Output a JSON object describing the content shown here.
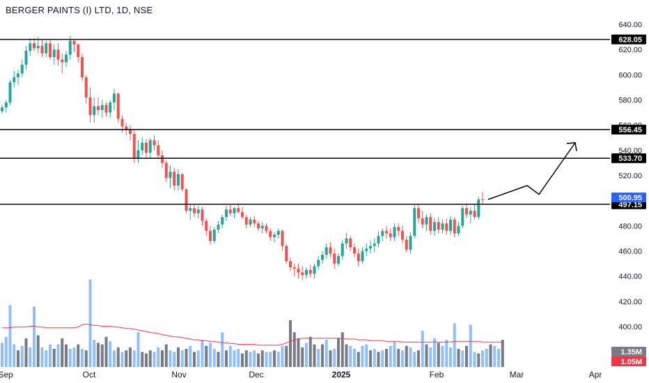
{
  "header": {
    "title": "BERGER PAINTS (I) LTD, 1D, NSE"
  },
  "colors": {
    "up": "#26a69a",
    "down": "#ef5350",
    "vol_up": "#90bff9",
    "vol_down": "#787b86",
    "vol_ma": "#f23645",
    "line": "#000000",
    "axis_text": "#131722",
    "last_price_bg": "#2962ff"
  },
  "chart_data": {
    "type": "candlestick",
    "ylim": [
      380,
      650
    ],
    "y_ticks": [
      "640.00",
      "620.00",
      "600.00",
      "580.00",
      "560.00",
      "540.00",
      "520.00",
      "500.00",
      "480.00",
      "460.00",
      "440.00",
      "420.00",
      "400.00"
    ],
    "x_labels": [
      "Sep",
      "Oct",
      "Nov",
      "Dec",
      "2025",
      "Feb",
      "Mar",
      "Apr"
    ],
    "horizontal_levels": [
      {
        "label": "628.05",
        "value": 628.05
      },
      {
        "label": "556.45",
        "value": 556.45
      },
      {
        "label": "533.70",
        "value": 533.7
      },
      {
        "label": "497.15",
        "value": 497.15
      }
    ],
    "last_price": {
      "label": "500.95",
      "value": 500.95
    },
    "volume_labels": [
      {
        "label": "1.35M",
        "value": 1.35
      },
      {
        "label": "1.05M",
        "value": 1.05
      }
    ],
    "projection_path": [
      [
        500.95,
        0
      ],
      [
        512,
        1
      ],
      [
        505,
        2
      ],
      [
        546,
        4
      ]
    ],
    "candles": [
      [
        571,
        576,
        569,
        574
      ],
      [
        574,
        580,
        570,
        578
      ],
      [
        578,
        596,
        576,
        594
      ],
      [
        594,
        603,
        590,
        598
      ],
      [
        598,
        604,
        592,
        601
      ],
      [
        601,
        612,
        598,
        608
      ],
      [
        608,
        623,
        604,
        619
      ],
      [
        619,
        629,
        615,
        625
      ],
      [
        625,
        629,
        619,
        621
      ],
      [
        621,
        630,
        617,
        623
      ],
      [
        623,
        628,
        614,
        617
      ],
      [
        617,
        627,
        614,
        625
      ],
      [
        625,
        628,
        612,
        614
      ],
      [
        614,
        624,
        608,
        620
      ],
      [
        620,
        625,
        607,
        612
      ],
      [
        612,
        617,
        601,
        610
      ],
      [
        610,
        619,
        606,
        616
      ],
      [
        616,
        631,
        612,
        627
      ],
      [
        627,
        628,
        618,
        624
      ],
      [
        624,
        625,
        610,
        614
      ],
      [
        614,
        617,
        595,
        598
      ],
      [
        598,
        600,
        577,
        582
      ],
      [
        582,
        590,
        562,
        568
      ],
      [
        568,
        582,
        562,
        575
      ],
      [
        575,
        582,
        568,
        572
      ],
      [
        572,
        580,
        566,
        576
      ],
      [
        576,
        578,
        567,
        570
      ],
      [
        570,
        580,
        566,
        578
      ],
      [
        578,
        589,
        572,
        585
      ],
      [
        585,
        586,
        562,
        565
      ],
      [
        565,
        568,
        554,
        559
      ],
      [
        559,
        562,
        552,
        556
      ],
      [
        556,
        560,
        548,
        553
      ],
      [
        553,
        556,
        530,
        534
      ],
      [
        534,
        548,
        530,
        540
      ],
      [
        540,
        550,
        536,
        546
      ],
      [
        546,
        549,
        533,
        538
      ],
      [
        538,
        550,
        534,
        548
      ],
      [
        548,
        552,
        540,
        544
      ],
      [
        544,
        548,
        533,
        536
      ],
      [
        536,
        540,
        526,
        530
      ],
      [
        530,
        532,
        515,
        518
      ],
      [
        518,
        528,
        510,
        523
      ],
      [
        523,
        526,
        508,
        512
      ],
      [
        512,
        525,
        508,
        521
      ],
      [
        521,
        522,
        507,
        509
      ],
      [
        509,
        510,
        490,
        492
      ],
      [
        492,
        497,
        485,
        494
      ],
      [
        494,
        497,
        487,
        490
      ],
      [
        490,
        496,
        486,
        493
      ],
      [
        493,
        495,
        480,
        484
      ],
      [
        484,
        486,
        472,
        476
      ],
      [
        476,
        480,
        465,
        468
      ],
      [
        468,
        479,
        466,
        477
      ],
      [
        477,
        484,
        474,
        481
      ],
      [
        481,
        489,
        478,
        487
      ],
      [
        487,
        496,
        484,
        493
      ],
      [
        493,
        497,
        488,
        490
      ],
      [
        490,
        495,
        486,
        494
      ],
      [
        494,
        498,
        490,
        491
      ],
      [
        491,
        495,
        485,
        487
      ],
      [
        487,
        489,
        478,
        481
      ],
      [
        481,
        487,
        479,
        485
      ],
      [
        485,
        488,
        479,
        482
      ],
      [
        482,
        484,
        476,
        478
      ],
      [
        478,
        483,
        474,
        480
      ],
      [
        480,
        482,
        474,
        476
      ],
      [
        476,
        478,
        468,
        471
      ],
      [
        471,
        475,
        467,
        473
      ],
      [
        473,
        478,
        470,
        476
      ],
      [
        476,
        477,
        460,
        464
      ],
      [
        464,
        466,
        450,
        452
      ],
      [
        452,
        455,
        444,
        447
      ],
      [
        447,
        450,
        440,
        446
      ],
      [
        446,
        450,
        438,
        443
      ],
      [
        443,
        448,
        437,
        441
      ],
      [
        441,
        447,
        438,
        445
      ],
      [
        445,
        449,
        439,
        442
      ],
      [
        442,
        450,
        438,
        448
      ],
      [
        448,
        456,
        445,
        453
      ],
      [
        453,
        460,
        450,
        457
      ],
      [
        457,
        466,
        454,
        463
      ],
      [
        463,
        467,
        455,
        458
      ],
      [
        458,
        462,
        446,
        450
      ],
      [
        450,
        458,
        448,
        456
      ],
      [
        456,
        469,
        453,
        466
      ],
      [
        466,
        474,
        462,
        470
      ],
      [
        470,
        472,
        460,
        463
      ],
      [
        463,
        466,
        455,
        458
      ],
      [
        458,
        462,
        448,
        452
      ],
      [
        452,
        463,
        450,
        460
      ],
      [
        460,
        466,
        456,
        462
      ],
      [
        462,
        468,
        458,
        464
      ],
      [
        464,
        470,
        459,
        466
      ],
      [
        466,
        476,
        463,
        472
      ],
      [
        472,
        478,
        468,
        476
      ],
      [
        476,
        480,
        470,
        474
      ],
      [
        474,
        478,
        468,
        471
      ],
      [
        471,
        482,
        468,
        479
      ],
      [
        479,
        482,
        472,
        476
      ],
      [
        476,
        480,
        466,
        469
      ],
      [
        469,
        472,
        459,
        461
      ],
      [
        461,
        475,
        458,
        472
      ],
      [
        472,
        497,
        470,
        494
      ],
      [
        494,
        497,
        482,
        486
      ],
      [
        486,
        492,
        478,
        481
      ],
      [
        481,
        489,
        476,
        487
      ],
      [
        487,
        490,
        473,
        476
      ],
      [
        476,
        486,
        472,
        483
      ],
      [
        483,
        487,
        474,
        477
      ],
      [
        477,
        485,
        474,
        482
      ],
      [
        482,
        486,
        473,
        476
      ],
      [
        476,
        488,
        473,
        485
      ],
      [
        485,
        487,
        471,
        474
      ],
      [
        474,
        483,
        472,
        480
      ],
      [
        480,
        496,
        478,
        494
      ],
      [
        494,
        498,
        486,
        489
      ],
      [
        489,
        495,
        482,
        492
      ],
      [
        492,
        497,
        485,
        487
      ],
      [
        487,
        503,
        485,
        501
      ],
      [
        501,
        507,
        497,
        500.95
      ]
    ],
    "volumes": [
      [
        0.32,
        "u"
      ],
      [
        0.4,
        "u"
      ],
      [
        0.82,
        "u"
      ],
      [
        0.3,
        "u"
      ],
      [
        0.22,
        "d"
      ],
      [
        0.28,
        "u"
      ],
      [
        0.38,
        "d"
      ],
      [
        0.26,
        "u"
      ],
      [
        0.8,
        "u"
      ],
      [
        0.42,
        "d"
      ],
      [
        0.26,
        "u"
      ],
      [
        0.22,
        "u"
      ],
      [
        0.3,
        "u"
      ],
      [
        0.24,
        "d"
      ],
      [
        0.3,
        "u"
      ],
      [
        0.38,
        "d"
      ],
      [
        0.3,
        "d"
      ],
      [
        0.24,
        "u"
      ],
      [
        0.26,
        "u"
      ],
      [
        0.3,
        "d"
      ],
      [
        0.24,
        "u"
      ],
      [
        0.22,
        "d"
      ],
      [
        1.16,
        "u"
      ],
      [
        0.36,
        "u"
      ],
      [
        0.32,
        "d"
      ],
      [
        0.3,
        "d"
      ],
      [
        0.4,
        "d"
      ],
      [
        0.34,
        "u"
      ],
      [
        0.22,
        "u"
      ],
      [
        0.26,
        "d"
      ],
      [
        0.2,
        "u"
      ],
      [
        0.22,
        "d"
      ],
      [
        0.26,
        "d"
      ],
      [
        0.22,
        "u"
      ],
      [
        0.46,
        "u"
      ],
      [
        0.2,
        "d"
      ],
      [
        0.18,
        "d"
      ],
      [
        0.22,
        "d"
      ],
      [
        0.2,
        "u"
      ],
      [
        0.26,
        "u"
      ],
      [
        0.22,
        "d"
      ],
      [
        0.3,
        "d"
      ],
      [
        0.22,
        "u"
      ],
      [
        0.2,
        "u"
      ],
      [
        0.26,
        "d"
      ],
      [
        0.22,
        "u"
      ],
      [
        0.24,
        "d"
      ],
      [
        0.28,
        "u"
      ],
      [
        0.2,
        "d"
      ],
      [
        0.22,
        "u"
      ],
      [
        0.36,
        "u"
      ],
      [
        0.28,
        "d"
      ],
      [
        0.32,
        "u"
      ],
      [
        0.24,
        "u"
      ],
      [
        0.2,
        "d"
      ],
      [
        0.46,
        "u"
      ],
      [
        0.22,
        "d"
      ],
      [
        0.28,
        "u"
      ],
      [
        0.22,
        "u"
      ],
      [
        0.24,
        "u"
      ],
      [
        0.18,
        "d"
      ],
      [
        0.22,
        "d"
      ],
      [
        0.2,
        "u"
      ],
      [
        0.22,
        "u"
      ],
      [
        0.18,
        "d"
      ],
      [
        0.22,
        "d"
      ],
      [
        0.2,
        "u"
      ],
      [
        0.2,
        "u"
      ],
      [
        0.22,
        "d"
      ],
      [
        0.2,
        "u"
      ],
      [
        0.28,
        "u"
      ],
      [
        0.28,
        "d"
      ],
      [
        0.62,
        "d"
      ],
      [
        0.46,
        "d"
      ],
      [
        0.38,
        "d"
      ],
      [
        0.26,
        "d"
      ],
      [
        0.32,
        "u"
      ],
      [
        0.4,
        "d"
      ],
      [
        0.3,
        "d"
      ],
      [
        0.24,
        "u"
      ],
      [
        0.3,
        "d"
      ],
      [
        0.36,
        "u"
      ],
      [
        0.22,
        "d"
      ],
      [
        0.24,
        "u"
      ],
      [
        0.38,
        "d"
      ],
      [
        0.46,
        "d"
      ],
      [
        0.3,
        "d"
      ],
      [
        0.28,
        "u"
      ],
      [
        0.24,
        "u"
      ],
      [
        0.2,
        "d"
      ],
      [
        0.28,
        "u"
      ],
      [
        0.3,
        "u"
      ],
      [
        0.22,
        "d"
      ],
      [
        0.24,
        "u"
      ],
      [
        0.2,
        "d"
      ],
      [
        0.22,
        "u"
      ],
      [
        0.24,
        "d"
      ],
      [
        0.28,
        "u"
      ],
      [
        0.34,
        "u"
      ],
      [
        0.24,
        "d"
      ],
      [
        0.22,
        "u"
      ],
      [
        0.28,
        "d"
      ],
      [
        0.26,
        "u"
      ],
      [
        0.2,
        "u"
      ],
      [
        0.22,
        "d"
      ],
      [
        0.48,
        "u"
      ],
      [
        0.3,
        "d"
      ],
      [
        0.26,
        "u"
      ],
      [
        0.38,
        "u"
      ],
      [
        0.32,
        "d"
      ],
      [
        0.28,
        "u"
      ],
      [
        0.36,
        "u"
      ],
      [
        0.26,
        "u"
      ],
      [
        0.58,
        "u"
      ],
      [
        0.24,
        "d"
      ],
      [
        0.22,
        "u"
      ],
      [
        0.28,
        "d"
      ],
      [
        0.56,
        "u"
      ],
      [
        0.2,
        "u"
      ],
      [
        0.18,
        "d"
      ],
      [
        0.22,
        "u"
      ],
      [
        0.24,
        "u"
      ],
      [
        0.3,
        "d"
      ],
      [
        0.28,
        "u"
      ],
      [
        0.24,
        "u"
      ],
      [
        0.36,
        "d"
      ]
    ],
    "volume_ma": [
      0.52,
      0.52,
      0.52,
      0.53,
      0.53,
      0.53,
      0.53,
      0.54,
      0.54,
      0.53,
      0.53,
      0.52,
      0.52,
      0.52,
      0.52,
      0.52,
      0.52,
      0.52,
      0.52,
      0.53,
      0.56,
      0.57,
      0.56,
      0.55,
      0.55,
      0.54,
      0.54,
      0.54,
      0.53,
      0.53,
      0.52,
      0.51,
      0.51,
      0.5,
      0.49,
      0.48,
      0.47,
      0.46,
      0.45,
      0.44,
      0.43,
      0.42,
      0.41,
      0.4,
      0.4,
      0.39,
      0.38,
      0.37,
      0.36,
      0.36,
      0.35,
      0.35,
      0.34,
      0.34,
      0.33,
      0.32,
      0.32,
      0.31,
      0.31,
      0.3,
      0.3,
      0.3,
      0.3,
      0.3,
      0.29,
      0.29,
      0.29,
      0.29,
      0.29,
      0.29,
      0.3,
      0.32,
      0.34,
      0.36,
      0.37,
      0.38,
      0.38,
      0.38,
      0.38,
      0.38,
      0.38,
      0.38,
      0.38,
      0.38,
      0.38,
      0.38,
      0.37,
      0.37,
      0.37,
      0.36,
      0.36,
      0.36,
      0.35,
      0.35,
      0.35,
      0.35,
      0.34,
      0.34,
      0.34,
      0.34,
      0.33,
      0.33,
      0.33,
      0.33,
      0.33,
      0.33,
      0.33,
      0.33,
      0.33,
      0.33,
      0.33,
      0.33,
      0.33,
      0.34,
      0.34,
      0.34,
      0.34,
      0.34,
      0.34,
      0.34,
      0.33,
      0.33,
      0.33,
      0.33,
      0.33,
      0.33
    ]
  }
}
